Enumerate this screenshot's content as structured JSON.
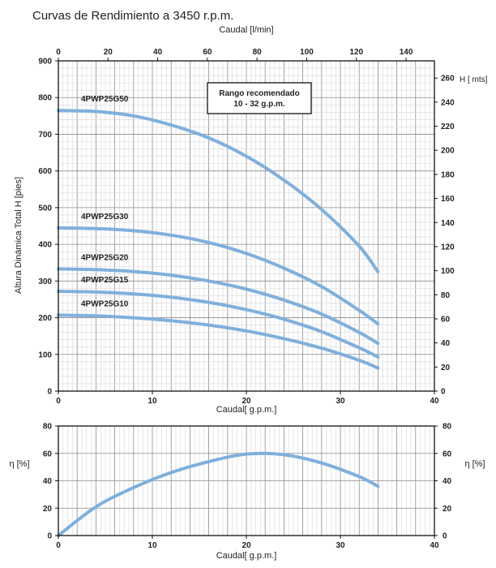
{
  "title": "Curvas de Rendimiento a 3450 r.p.m.",
  "recommended_box": {
    "line1": "Rango recomendado",
    "line2": "10 - 32 g.p.m."
  },
  "chart_data": [
    {
      "type": "line",
      "title": "Curvas de Rendimiento a 3450 r.p.m.",
      "xlabel": "Caudal[ g.p.m.]",
      "x2label": "Caudal [l/min]",
      "ylabel": "Altura Dinámica Total H [pies]",
      "y2label": "H [ mts]",
      "xlim": [
        0,
        40
      ],
      "x2lim": [
        0,
        151.4
      ],
      "ylim": [
        0,
        900
      ],
      "y2lim": [
        0,
        274.3
      ],
      "xticks": [
        0,
        10,
        20,
        30,
        40
      ],
      "x2ticks": [
        0,
        20,
        40,
        60,
        80,
        100,
        120,
        140
      ],
      "yticks": [
        0,
        100,
        200,
        300,
        400,
        500,
        600,
        700,
        800,
        900
      ],
      "y2ticks": [
        0,
        20,
        40,
        60,
        80,
        100,
        120,
        140,
        160,
        180,
        200,
        220,
        240,
        260
      ],
      "grid": true,
      "x": [
        0,
        4,
        8,
        12,
        16,
        20,
        24,
        28,
        32,
        34
      ],
      "series": [
        {
          "name": "4PWP25G50",
          "values": [
            765,
            762,
            750,
            725,
            690,
            640,
            575,
            495,
            395,
            325
          ],
          "color": "#7fb0dc"
        },
        {
          "name": "4PWP25G30",
          "values": [
            445,
            443,
            437,
            425,
            405,
            375,
            335,
            285,
            220,
            183
          ],
          "color": "#7fb0dc"
        },
        {
          "name": "4PWP25G20",
          "values": [
            333,
            331,
            326,
            316,
            300,
            278,
            248,
            210,
            160,
            130
          ],
          "color": "#7fb0dc"
        },
        {
          "name": "4PWP25G15",
          "values": [
            272,
            270,
            265,
            256,
            242,
            222,
            196,
            162,
            118,
            93
          ],
          "color": "#7fb0dc"
        },
        {
          "name": "4PWP25G10",
          "values": [
            207,
            205,
            200,
            192,
            180,
            164,
            143,
            117,
            84,
            63
          ],
          "color": "#7fb0dc"
        }
      ]
    },
    {
      "type": "line",
      "xlabel": "Caudal[ g.p.m.]",
      "ylabel": "η [%]",
      "y2label": "η [%]",
      "xlim": [
        0,
        40
      ],
      "ylim": [
        0,
        80
      ],
      "xticks": [
        0,
        10,
        20,
        30,
        40
      ],
      "yticks": [
        0,
        20,
        40,
        60,
        80
      ],
      "grid": true,
      "x": [
        0,
        4,
        8,
        12,
        16,
        20,
        24,
        28,
        32,
        34
      ],
      "series": [
        {
          "values": [
            0,
            21,
            35,
            46,
            54,
            59.5,
            59,
            53,
            43,
            36
          ],
          "color": "#7fb0dc"
        }
      ]
    }
  ]
}
